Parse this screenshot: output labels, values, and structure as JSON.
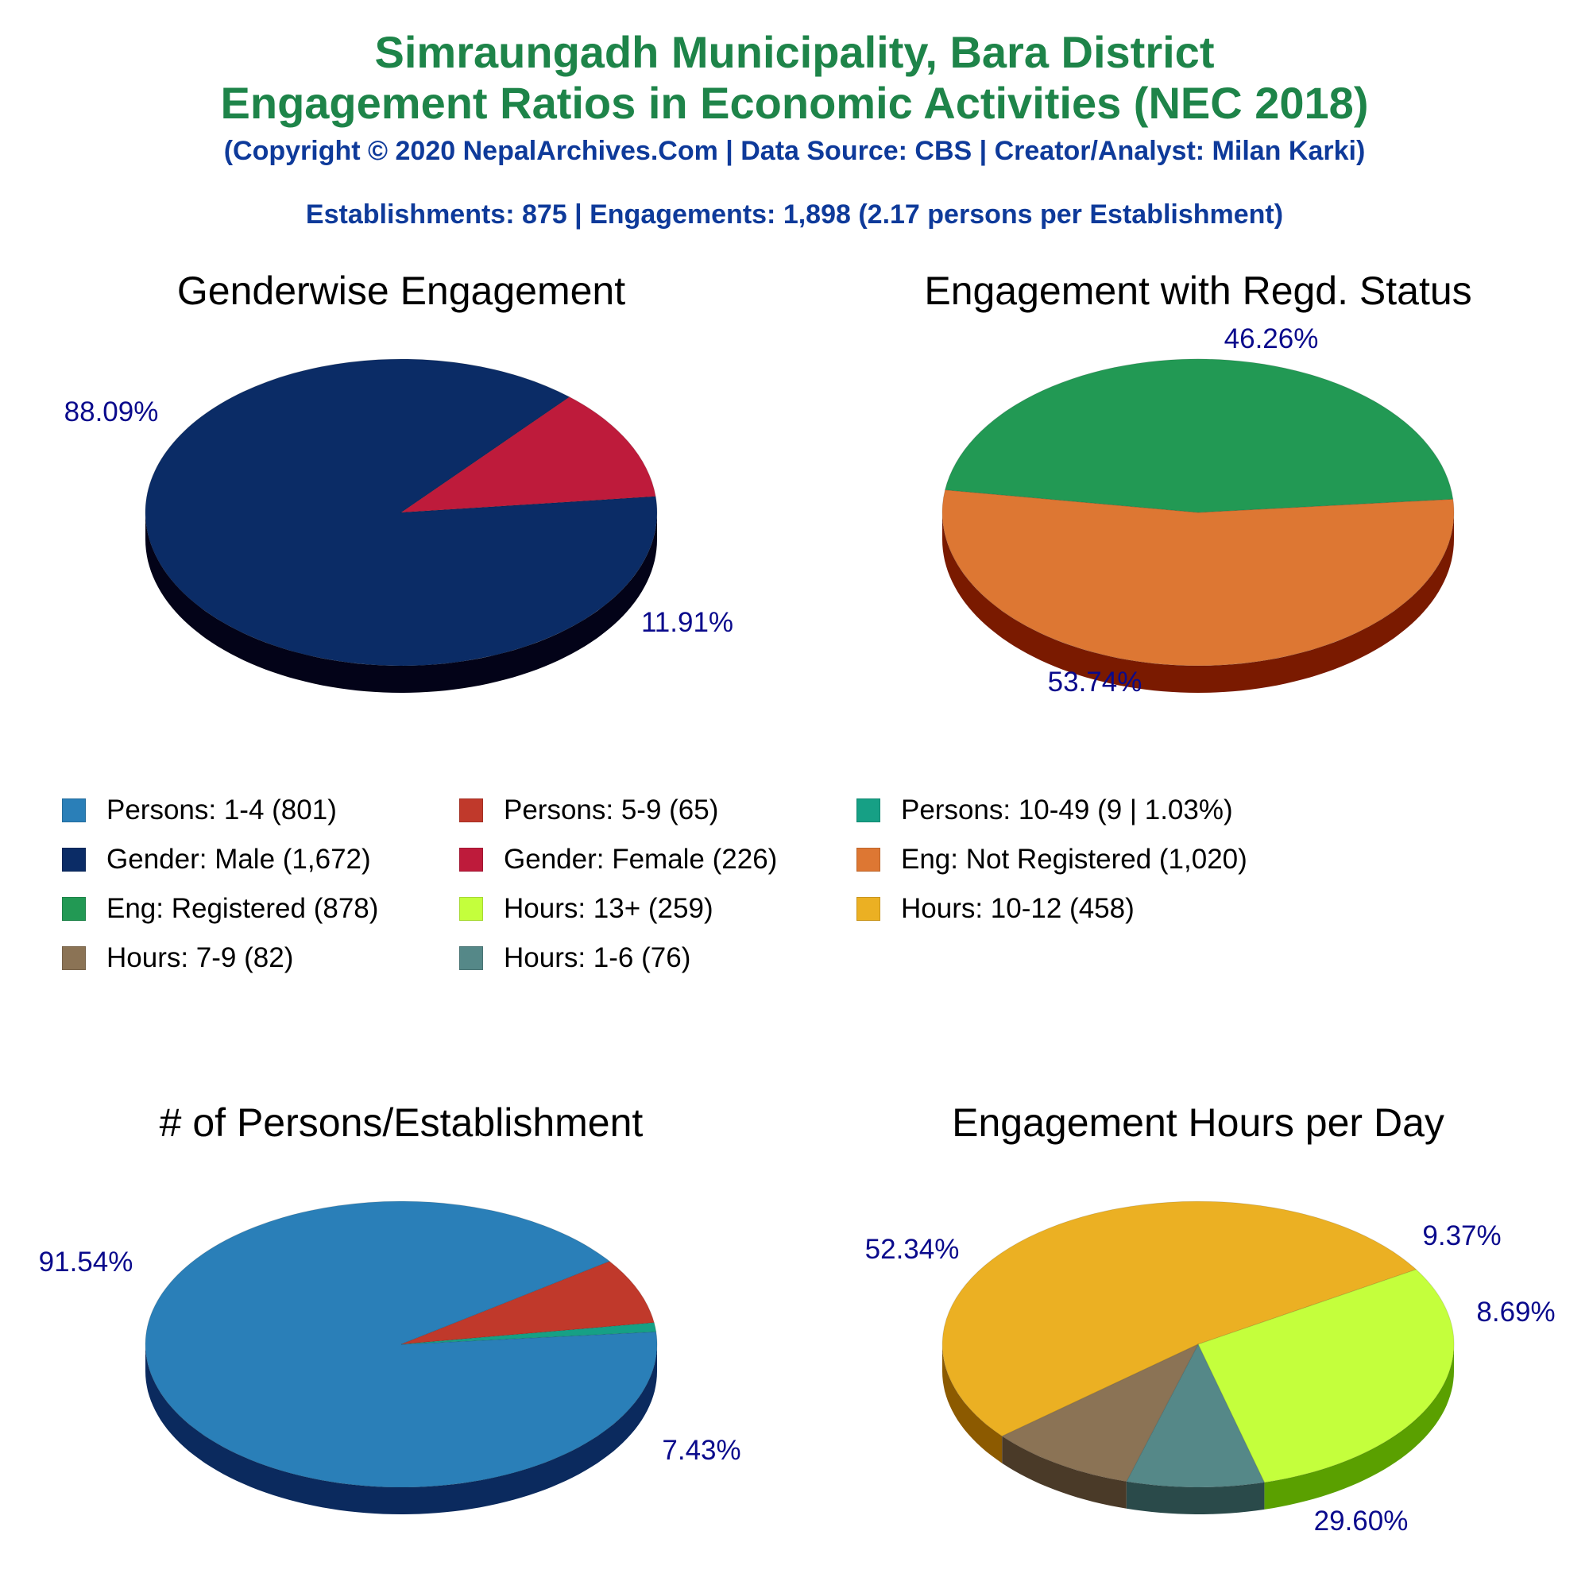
{
  "header": {
    "title_line1": "Simraungadh Municipality, Bara District",
    "title_line2": "Engagement Ratios in Economic Activities (NEC 2018)",
    "copyright": "(Copyright © 2020 NepalArchives.Com | Data Source: CBS | Creator/Analyst: Milan Karki)",
    "summary": "Establishments: 875 | Engagements: 1,898 (2.17 persons per Establishment)"
  },
  "legend": [
    {
      "label": "Persons: 1-4 (801)",
      "color": "#2a7fb8"
    },
    {
      "label": "Persons: 5-9 (65)",
      "color": "#c0392b"
    },
    {
      "label": "Persons: 10-49 (9 | 1.03%)",
      "color": "#16a085"
    },
    {
      "label": "Gender: Male (1,672)",
      "color": "#0b2c66"
    },
    {
      "label": "Gender: Female (226)",
      "color": "#be1b3b"
    },
    {
      "label": "Eng: Not Registered (1,020)",
      "color": "#dd7733"
    },
    {
      "label": "Eng: Registered (878)",
      "color": "#229954"
    },
    {
      "label": "Hours: 13+ (259)",
      "color": "#c4ff3c"
    },
    {
      "label": "Hours: 10-12 (458)",
      "color": "#ebb023"
    },
    {
      "label": "Hours: 7-9 (82)",
      "color": "#8b7355"
    },
    {
      "label": "Hours: 1-6 (76)",
      "color": "#558888"
    }
  ],
  "chart_data": [
    {
      "type": "pie",
      "title": "Genderwise Engagement",
      "slices": [
        {
          "name": "Gender: Male",
          "value": 1672,
          "label": "88.09%",
          "color": "#0b2c66",
          "side": "#030318"
        },
        {
          "name": "Gender: Female",
          "value": 226,
          "label": "11.91%",
          "color": "#be1b3b",
          "side": "#6e0000"
        }
      ]
    },
    {
      "type": "pie",
      "title": "Engagement with Regd. Status",
      "slices": [
        {
          "name": "Eng: Not Registered",
          "value": 1020,
          "label": "53.74%",
          "color": "#dd7733",
          "side": "#7a1a00"
        },
        {
          "name": "Eng: Registered",
          "value": 878,
          "label": "46.26%",
          "color": "#229954",
          "side": "#0d5c28"
        }
      ]
    },
    {
      "type": "pie",
      "title": "# of Persons/Establishment",
      "slices": [
        {
          "name": "Persons: 1-4",
          "value": 801,
          "label": "91.54%",
          "color": "#2a7fb8",
          "side": "#0b2a5e"
        },
        {
          "name": "Persons: 5-9",
          "value": 65,
          "label": "7.43%",
          "color": "#c0392b",
          "side": "#6e0000"
        },
        {
          "name": "Persons: 10-49",
          "value": 9,
          "label": "",
          "color": "#16a085",
          "side": "#0b5c4a"
        }
      ]
    },
    {
      "type": "pie",
      "title": "Engagement Hours per Day",
      "slices": [
        {
          "name": "Hours: 10-12",
          "value": 458,
          "label": "52.34%",
          "color": "#ebb023",
          "side": "#8c5a00"
        },
        {
          "name": "Hours: 13+",
          "value": 259,
          "label": "29.60%",
          "color": "#c4ff3c",
          "side": "#5aa000"
        },
        {
          "name": "Hours: 1-6",
          "value": 76,
          "label": "8.69%",
          "color": "#558888",
          "side": "#2a4a4a"
        },
        {
          "name": "Hours: 7-9",
          "value": 82,
          "label": "9.37%",
          "color": "#8b7355",
          "side": "#4a3a28"
        }
      ]
    }
  ]
}
